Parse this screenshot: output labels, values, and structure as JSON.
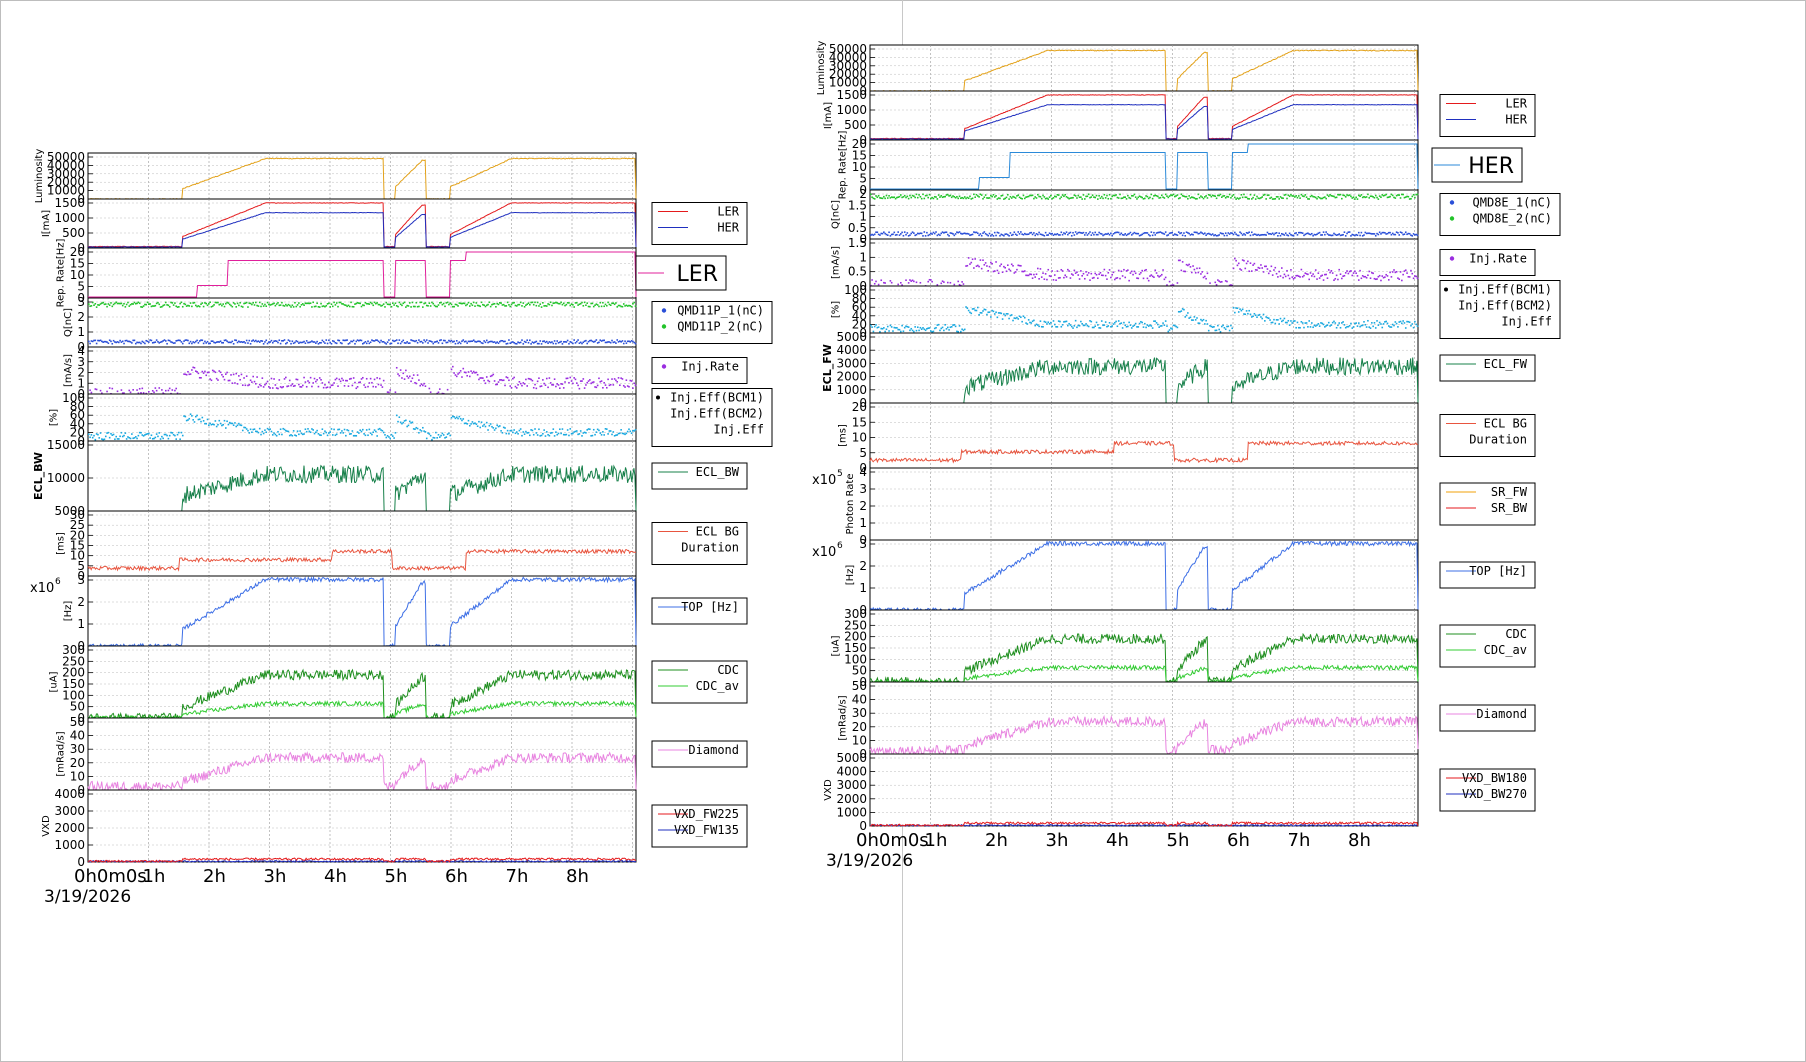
{
  "colors": {
    "luminosity": "#e3a21a",
    "ler": "#e41a1c",
    "her": "#1f2fbf",
    "rep_ler": "#e0209b",
    "rep_her": "#2b8ad9",
    "q_1": "#2a4fd8",
    "q_2": "#22c32a",
    "inj_rate": "#9a2de0",
    "inj_eff": "#1aa9e0",
    "ecl": "#17804a",
    "ecl_bg": "#e8553f",
    "sr_fw": "#f0a10a",
    "sr_bw": "#e41a1c",
    "top": "#3d6fe6",
    "cdc": "#1f8f1f",
    "cdc_av": "#33cc33",
    "diamond": "#e884e0",
    "vxd_a": "#1f2fbf",
    "vxd_b": "#e41a1c"
  },
  "x_axis": {
    "ticks": [
      "0h0m0s",
      "1h",
      "2h",
      "3h",
      "4h",
      "5h",
      "6h",
      "7h",
      "8h"
    ],
    "date": "3/19/2026"
  },
  "chart_data": [
    {
      "id": "ler",
      "type": "line",
      "ring_label": "LER",
      "panels": [
        {
          "id": "luminosity",
          "ylabel": "Luminosity",
          "yticks": [
            "0",
            "10000",
            "20000",
            "30000",
            "40000",
            "50000"
          ],
          "legend": []
        },
        {
          "id": "current",
          "ylabel": "I[mA]",
          "yticks": [
            "0",
            "500",
            "1000",
            "1500"
          ],
          "legend": [
            "LER",
            "HER"
          ]
        },
        {
          "id": "rep",
          "ylabel": "Rep. Rate[Hz]",
          "yticks": [
            "0",
            "5",
            "10",
            "15",
            "20"
          ],
          "legend": []
        },
        {
          "id": "charge",
          "ylabel": "Q[nC]",
          "yticks": [
            "0",
            "1",
            "2",
            "3"
          ],
          "legend": [
            "QMD11P_1(nC)",
            "QMD11P_2(nC)"
          ]
        },
        {
          "id": "injrate",
          "ylabel": "[mA/s]",
          "yticks": [
            "0",
            "1",
            "2",
            "3",
            "4"
          ],
          "legend": [
            "Inj.Rate"
          ]
        },
        {
          "id": "injeff",
          "ylabel": "[%]",
          "yticks": [
            "0",
            "20",
            "40",
            "60",
            "80",
            "100"
          ],
          "legend": [
            "Inj.Eff(BCM1)",
            "Inj.Eff(BCM2)",
            "Inj.Eff"
          ]
        },
        {
          "id": "ecl",
          "ylabel": "ECL_BW",
          "yticks": [
            "5000",
            "10000",
            "15000"
          ],
          "legend": [
            "ECL_BW"
          ]
        },
        {
          "id": "eclbg",
          "ylabel": "[ms]",
          "yticks": [
            "0",
            "5",
            "10",
            "15",
            "20",
            "25",
            "30"
          ],
          "legend": [
            "ECL BG",
            "Duration"
          ]
        },
        {
          "id": "top",
          "ylabel": "[Hz]",
          "yticks": [
            "0",
            "1",
            "2",
            "3"
          ],
          "exponent": "x10",
          "exponent_power": "6",
          "legend": [
            "TOP [Hz]"
          ]
        },
        {
          "id": "cdc",
          "ylabel": "[uA]",
          "yticks": [
            "0",
            "50",
            "100",
            "150",
            "200",
            "250",
            "300"
          ],
          "legend": [
            "CDC",
            "CDC_av"
          ]
        },
        {
          "id": "diamond",
          "ylabel": "[mRad/s]",
          "yticks": [
            "0",
            "10",
            "20",
            "30",
            "40",
            "50"
          ],
          "legend": [
            "Diamond"
          ]
        },
        {
          "id": "vxd",
          "ylabel": "VXD",
          "yticks": [
            "0",
            "1000",
            "2000",
            "3000",
            "4000"
          ],
          "legend": [
            "VXD_FW225",
            "VXD_FW135"
          ]
        }
      ]
    },
    {
      "id": "her",
      "type": "line",
      "ring_label": "HER",
      "panels": [
        {
          "id": "luminosity",
          "ylabel": "Luminosity",
          "yticks": [
            "0",
            "10000",
            "20000",
            "30000",
            "40000",
            "50000"
          ],
          "legend": []
        },
        {
          "id": "current",
          "ylabel": "I[mA]",
          "yticks": [
            "0",
            "500",
            "1000",
            "1500"
          ],
          "legend": [
            "LER",
            "HER"
          ]
        },
        {
          "id": "rep",
          "ylabel": "Rep. Rate[Hz]",
          "yticks": [
            "0",
            "5",
            "10",
            "15",
            "20"
          ],
          "legend": []
        },
        {
          "id": "charge",
          "ylabel": "Q[nC]",
          "yticks": [
            "0",
            "0.5",
            "1",
            "1.5",
            "2"
          ],
          "legend": [
            "QMD8E_1(nC)",
            "QMD8E_2(nC)"
          ]
        },
        {
          "id": "injrate",
          "ylabel": "[mA/s]",
          "yticks": [
            "0",
            "0.5",
            "1",
            "1.5"
          ],
          "legend": [
            "Inj.Rate"
          ]
        },
        {
          "id": "injeff",
          "ylabel": "[%]",
          "yticks": [
            "0",
            "20",
            "40",
            "60",
            "80",
            "100"
          ],
          "legend": [
            "Inj.Eff(BCM1)",
            "Inj.Eff(BCM2)",
            "Inj.Eff"
          ]
        },
        {
          "id": "ecl",
          "ylabel": "ECL_FW",
          "yticks": [
            "0",
            "1000",
            "2000",
            "3000",
            "4000",
            "5000"
          ],
          "legend": [
            "ECL_FW"
          ]
        },
        {
          "id": "eclbg",
          "ylabel": "[ms]",
          "yticks": [
            "0",
            "5",
            "10",
            "15",
            "20"
          ],
          "legend": [
            "ECL BG",
            "Duration"
          ]
        },
        {
          "id": "photon",
          "ylabel": "Photon Rate",
          "yticks": [
            "0",
            "1",
            "2",
            "3",
            "4"
          ],
          "exponent": "x10",
          "exponent_power": "5",
          "legend": [
            "SR_FW",
            "SR_BW"
          ]
        },
        {
          "id": "top",
          "ylabel": "[Hz]",
          "yticks": [
            "0",
            "1",
            "2",
            "3"
          ],
          "exponent": "x10",
          "exponent_power": "6",
          "legend": [
            "TOP [Hz]"
          ]
        },
        {
          "id": "cdc",
          "ylabel": "[uA]",
          "yticks": [
            "0",
            "50",
            "100",
            "150",
            "200",
            "250",
            "300"
          ],
          "legend": [
            "CDC",
            "CDC_av"
          ]
        },
        {
          "id": "diamond",
          "ylabel": "[mRad/s]",
          "yticks": [
            "0",
            "10",
            "20",
            "30",
            "40",
            "50"
          ],
          "legend": [
            "Diamond"
          ]
        },
        {
          "id": "vxd",
          "ylabel": "VXD",
          "yticks": [
            "0",
            "1000",
            "2000",
            "3000",
            "4000",
            "5000"
          ],
          "legend": [
            "VXD_BW180",
            "VXD_BW270"
          ]
        }
      ]
    }
  ]
}
